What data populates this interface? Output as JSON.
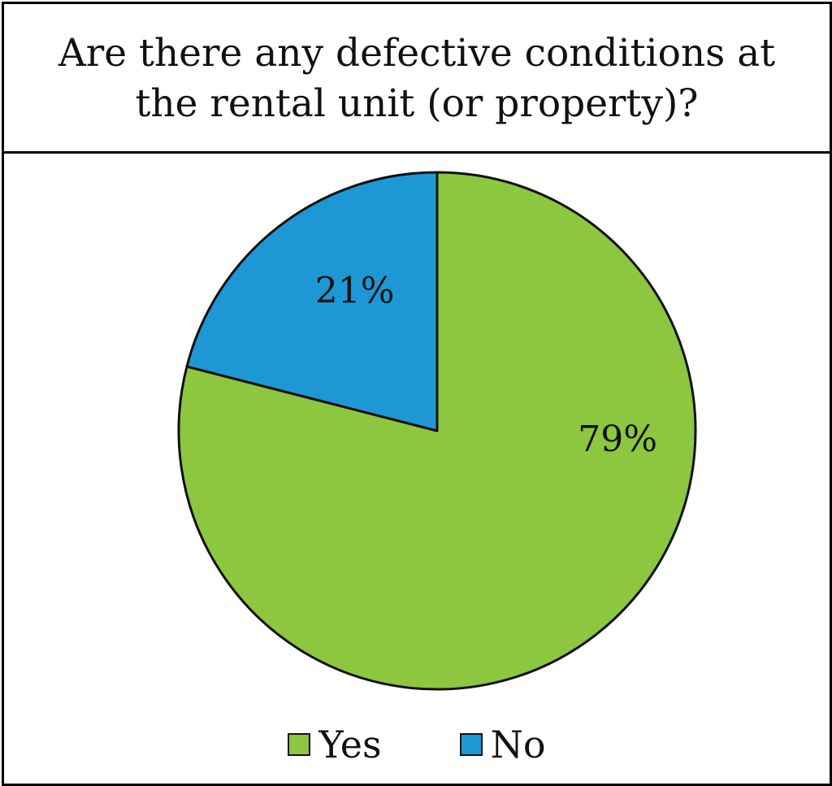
{
  "chart_data": {
    "type": "pie",
    "title": "Are there any defective conditions at the rental unit (or property)?",
    "slices": [
      {
        "label": "Yes",
        "value": 79,
        "data_label": "79%",
        "color": "#8DC63F"
      },
      {
        "label": "No",
        "value": 21,
        "data_label": "21%",
        "color": "#1E98D5"
      }
    ],
    "legend": {
      "placement": "bottom",
      "entries": [
        "Yes",
        "No"
      ]
    }
  },
  "colors": {
    "yes": "#8DC63F",
    "no": "#1E98D5",
    "outline": "#111111"
  }
}
